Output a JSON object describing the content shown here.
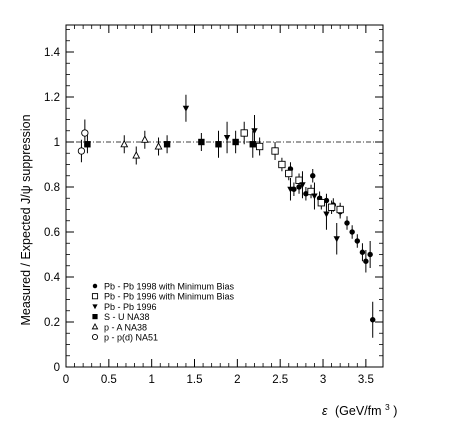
{
  "chart_data": {
    "type": "scatter",
    "xlabel_symbol": "ε",
    "xlabel_unit": "(GeV/fm",
    "xlabel_unit_exp": "3",
    "xlabel_unit_close": ")",
    "ylabel": "Measured / Expected  J/ψ suppression",
    "xlim": [
      0,
      3.7
    ],
    "ylim": [
      0,
      1.52
    ],
    "x_ticks": [
      0,
      0.5,
      1,
      1.5,
      2,
      2.5,
      3,
      3.5
    ],
    "x_tick_labels": [
      "0",
      "0.5",
      "1",
      "1.5",
      "2",
      "2.5",
      "3",
      "3.5"
    ],
    "y_ticks": [
      0,
      0.2,
      0.4,
      0.6,
      0.8,
      1,
      1.2,
      1.4
    ],
    "y_tick_labels": [
      "0",
      "0.2",
      "0.4",
      "0.6",
      "0.8",
      "1",
      "1.2",
      "1.4"
    ],
    "reference_line": 1.0,
    "legend_position": "bottom-left",
    "series": [
      {
        "name": "Pb - Pb 1998 with Minimum Bias",
        "marker": "filled-circle",
        "points": [
          [
            2.62,
            0.88,
            0.03
          ],
          [
            2.66,
            0.79,
            0.03
          ],
          [
            2.72,
            0.8,
            0.03
          ],
          [
            2.8,
            0.77,
            0.03
          ],
          [
            2.88,
            0.85,
            0.03
          ],
          [
            2.96,
            0.75,
            0.03
          ],
          [
            3.04,
            0.74,
            0.03
          ],
          [
            3.12,
            0.72,
            0.03
          ],
          [
            3.2,
            0.69,
            0.03
          ],
          [
            3.28,
            0.64,
            0.03
          ],
          [
            3.34,
            0.6,
            0.03
          ],
          [
            3.4,
            0.56,
            0.03
          ],
          [
            3.46,
            0.51,
            0.04
          ],
          [
            3.5,
            0.47,
            0.05
          ],
          [
            3.55,
            0.5,
            0.06
          ],
          [
            3.58,
            0.21,
            0.08
          ]
        ]
      },
      {
        "name": "Pb - Pb 1996 with Minimum Bias",
        "marker": "open-square",
        "points": [
          [
            2.08,
            1.04,
            0.05
          ],
          [
            2.26,
            0.98,
            0.04
          ],
          [
            2.44,
            0.96,
            0.04
          ],
          [
            2.52,
            0.9,
            0.03
          ],
          [
            2.6,
            0.86,
            0.03
          ],
          [
            2.72,
            0.83,
            0.03
          ],
          [
            2.86,
            0.78,
            0.03
          ],
          [
            2.98,
            0.73,
            0.03
          ],
          [
            3.1,
            0.71,
            0.03
          ],
          [
            3.2,
            0.7,
            0.03
          ]
        ]
      },
      {
        "name": "Pb - Pb 1996",
        "marker": "filled-triangle-down",
        "points": [
          [
            1.4,
            1.15,
            0.06
          ],
          [
            1.88,
            1.02,
            0.07
          ],
          [
            2.2,
            1.05,
            0.07
          ],
          [
            2.62,
            0.79,
            0.05
          ],
          [
            2.76,
            0.81,
            0.06
          ],
          [
            2.9,
            0.76,
            0.06
          ],
          [
            3.04,
            0.68,
            0.07
          ],
          [
            3.16,
            0.57,
            0.07
          ]
        ]
      },
      {
        "name": "S - U    NA38",
        "marker": "filled-square",
        "points": [
          [
            0.25,
            0.99,
            0.04
          ],
          [
            1.18,
            0.99,
            0.04
          ],
          [
            1.58,
            1.0,
            0.04
          ],
          [
            1.78,
            0.99,
            0.06
          ],
          [
            1.98,
            1.0,
            0.05
          ],
          [
            2.18,
            0.99,
            0.06
          ]
        ]
      },
      {
        "name": "p - A    NA38",
        "marker": "open-triangle",
        "points": [
          [
            0.68,
            0.99,
            0.04
          ],
          [
            0.82,
            0.94,
            0.04
          ],
          [
            0.92,
            1.01,
            0.04
          ],
          [
            1.08,
            0.98,
            0.04
          ]
        ]
      },
      {
        "name": "p - p(d)  NA51",
        "marker": "open-circle",
        "points": [
          [
            0.18,
            0.96,
            0.05
          ],
          [
            0.22,
            1.04,
            0.06
          ]
        ]
      }
    ]
  }
}
